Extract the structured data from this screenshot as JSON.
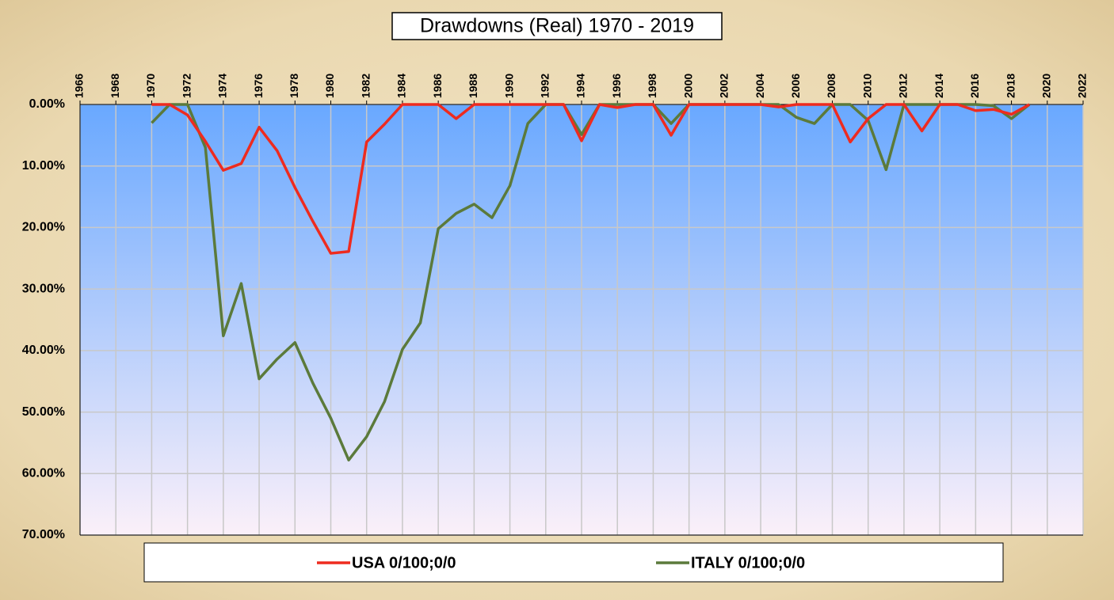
{
  "chart_data": {
    "type": "line",
    "title": "Drawdowns (Real) 1970 - 2019",
    "x": [
      1970,
      1971,
      1972,
      1973,
      1974,
      1975,
      1976,
      1977,
      1978,
      1979,
      1980,
      1981,
      1982,
      1983,
      1984,
      1985,
      1986,
      1987,
      1988,
      1989,
      1990,
      1991,
      1992,
      1993,
      1994,
      1995,
      1996,
      1997,
      1998,
      1999,
      2000,
      2001,
      2002,
      2003,
      2004,
      2005,
      2006,
      2007,
      2008,
      2009,
      2010,
      2011,
      2012,
      2013,
      2014,
      2015,
      2016,
      2017,
      2018,
      2019
    ],
    "series": [
      {
        "name": "USA 0/100;0/0",
        "color": "#ee2b1f",
        "values": [
          0,
          0,
          1.7,
          6,
          10.7,
          9.6,
          3.7,
          7.5,
          13.5,
          19,
          24.2,
          23.9,
          6.1,
          3.2,
          0,
          0,
          0,
          2.3,
          0,
          0,
          0,
          0,
          0,
          0,
          5.9,
          0,
          0.5,
          0,
          0,
          5,
          0,
          0,
          0,
          0,
          0,
          0.4,
          0,
          0,
          0,
          6.1,
          2.3,
          0,
          0,
          4.3,
          0,
          0,
          1,
          0.8,
          1.6,
          0
        ]
      },
      {
        "name": "ITALY 0/100;0/0",
        "color": "#5b7a3b",
        "values": [
          3,
          0,
          0,
          7,
          37.6,
          29.1,
          44.6,
          41.4,
          38.7,
          45.3,
          51,
          57.8,
          54,
          48.3,
          39.8,
          35.5,
          20.2,
          17.7,
          16.2,
          18.4,
          13.2,
          3.1,
          0,
          0,
          4.9,
          0,
          0,
          0,
          0,
          3.1,
          0,
          0,
          0,
          0,
          0,
          0,
          2.1,
          3.1,
          0,
          0,
          2.6,
          10.6,
          0,
          0,
          0,
          0,
          0,
          0.2,
          2.3,
          0
        ]
      }
    ],
    "xlim": [
      1966,
      2022
    ],
    "xticks": [
      1966,
      1968,
      1970,
      1972,
      1974,
      1976,
      1978,
      1980,
      1982,
      1984,
      1986,
      1988,
      1990,
      1992,
      1994,
      1996,
      1998,
      2000,
      2002,
      2004,
      2006,
      2008,
      2010,
      2012,
      2014,
      2016,
      2018,
      2020,
      2022
    ],
    "ylim": [
      0,
      70
    ],
    "y_reversed": true,
    "yticks": [
      {
        "value": 0,
        "label": "0.00%"
      },
      {
        "value": 10,
        "label": "10.00%"
      },
      {
        "value": 20,
        "label": "20.00%"
      },
      {
        "value": 30,
        "label": "30.00%"
      },
      {
        "value": 40,
        "label": "40.00%"
      },
      {
        "value": 50,
        "label": "50.00%"
      },
      {
        "value": 60,
        "label": "60.00%"
      },
      {
        "value": 70,
        "label": "70.00%"
      }
    ],
    "grid": true,
    "legend": "bottom"
  }
}
